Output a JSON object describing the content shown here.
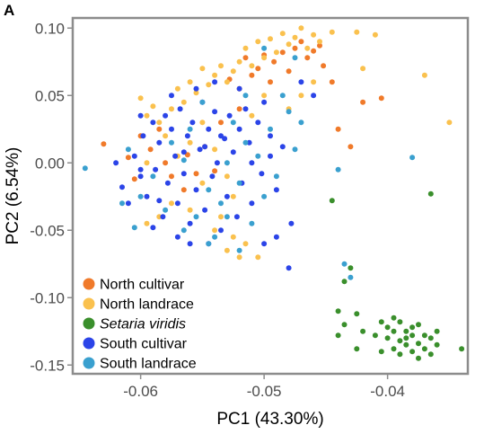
{
  "panel_label": "A",
  "chart_data": {
    "type": "scatter",
    "title": "",
    "xlabel": "PC1 (43.30%)",
    "ylabel": "PC2 (6.54%)",
    "xlim": [
      -0.0655,
      -0.0335
    ],
    "ylim": [
      -0.1565,
      0.1075
    ],
    "xticks": [
      -0.06,
      -0.05,
      -0.04
    ],
    "xtick_labels": [
      "-0.06",
      "-0.05",
      "-0.04"
    ],
    "yticks": [
      0.1,
      0.05,
      0.0,
      -0.05,
      -0.1,
      -0.15
    ],
    "ytick_labels": [
      "0.10",
      "0.05",
      "0.00",
      "-0.05",
      "-0.10",
      "-0.15"
    ],
    "grid": false,
    "legend_position": "bottom-left",
    "series": [
      {
        "name": "North cultivar",
        "italic": false,
        "color": "#f07a2a",
        "points": [
          [
            -0.063,
            0.014
          ],
          [
            -0.061,
            0.004
          ],
          [
            -0.0605,
            -0.012
          ],
          [
            -0.0592,
            0.01
          ],
          [
            -0.058,
            0.0
          ],
          [
            -0.0575,
            -0.01
          ],
          [
            -0.0562,
            0.006
          ],
          [
            -0.0555,
            -0.008
          ],
          [
            -0.0548,
            0.012
          ],
          [
            -0.054,
            -0.006
          ],
          [
            -0.0535,
            0.03
          ],
          [
            -0.0528,
            0.062
          ],
          [
            -0.052,
            0.055
          ],
          [
            -0.0515,
            0.078
          ],
          [
            -0.051,
            0.065
          ],
          [
            -0.0505,
            0.07
          ],
          [
            -0.05,
            0.08
          ],
          [
            -0.0492,
            0.075
          ],
          [
            -0.0485,
            0.082
          ],
          [
            -0.048,
            0.068
          ],
          [
            -0.0475,
            0.085
          ],
          [
            -0.047,
            0.09
          ],
          [
            -0.0465,
            0.078
          ],
          [
            -0.046,
            0.083
          ],
          [
            -0.0455,
            0.087
          ],
          [
            -0.0452,
            0.072
          ],
          [
            -0.0445,
            0.06
          ],
          [
            -0.044,
            0.025
          ],
          [
            -0.043,
            0.012
          ],
          [
            -0.042,
            0.045
          ],
          [
            -0.0405,
            0.048
          ],
          [
            -0.052,
            0.04
          ],
          [
            -0.0585,
            0.025
          ],
          [
            -0.0565,
            -0.02
          ],
          [
            -0.06,
            0.02
          ],
          [
            -0.0495,
            0.06
          ]
        ]
      },
      {
        "name": "North landrace",
        "italic": false,
        "color": "#fac14e",
        "points": [
          [
            -0.06,
            0.048
          ],
          [
            -0.0595,
            0.035
          ],
          [
            -0.059,
            0.042
          ],
          [
            -0.0585,
            0.03
          ],
          [
            -0.058,
            0.02
          ],
          [
            -0.0575,
            0.04
          ],
          [
            -0.057,
            0.055
          ],
          [
            -0.0565,
            0.045
          ],
          [
            -0.056,
            0.06
          ],
          [
            -0.0555,
            0.052
          ],
          [
            -0.055,
            0.07
          ],
          [
            -0.0545,
            0.058
          ],
          [
            -0.054,
            0.065
          ],
          [
            -0.0535,
            0.072
          ],
          [
            -0.053,
            0.06
          ],
          [
            -0.0525,
            0.068
          ],
          [
            -0.052,
            0.075
          ],
          [
            -0.0515,
            0.085
          ],
          [
            -0.051,
            0.072
          ],
          [
            -0.0505,
            0.09
          ],
          [
            -0.05,
            0.078
          ],
          [
            -0.0495,
            0.092
          ],
          [
            -0.049,
            0.082
          ],
          [
            -0.0485,
            0.096
          ],
          [
            -0.048,
            0.088
          ],
          [
            -0.0475,
            0.093
          ],
          [
            -0.047,
            0.1
          ],
          [
            -0.0465,
            0.085
          ],
          [
            -0.046,
            0.095
          ],
          [
            -0.0455,
            0.09
          ],
          [
            -0.0445,
            0.097
          ],
          [
            -0.0425,
            0.097
          ],
          [
            -0.041,
            0.095
          ],
          [
            -0.037,
            0.065
          ],
          [
            -0.035,
            0.03
          ],
          [
            -0.042,
            0.07
          ],
          [
            -0.055,
            0.03
          ],
          [
            -0.056,
            0.015
          ],
          [
            -0.054,
            0.01
          ],
          [
            -0.053,
            -0.01
          ],
          [
            -0.0525,
            -0.025
          ],
          [
            -0.0535,
            -0.04
          ],
          [
            -0.054,
            -0.05
          ],
          [
            -0.053,
            -0.065
          ],
          [
            -0.052,
            -0.07
          ],
          [
            -0.0515,
            -0.06
          ],
          [
            -0.0505,
            -0.07
          ],
          [
            -0.0525,
            -0.055
          ],
          [
            -0.0585,
            -0.04
          ],
          [
            -0.0595,
            -0.045
          ],
          [
            -0.0575,
            -0.03
          ],
          [
            -0.056,
            -0.035
          ],
          [
            -0.0595,
            0.0
          ],
          [
            -0.057,
            0.005
          ],
          [
            -0.051,
            0.035
          ],
          [
            -0.05,
            0.05
          ],
          [
            -0.055,
            -0.015
          ],
          [
            -0.048,
            0.04
          ],
          [
            -0.047,
            0.05
          ],
          [
            -0.046,
            0.06
          ]
        ]
      },
      {
        "name": "Setaria viridis",
        "italic": true,
        "color": "#3a8f2c",
        "points": [
          [
            -0.0445,
            -0.028
          ],
          [
            -0.0365,
            -0.023
          ],
          [
            -0.043,
            -0.078
          ],
          [
            -0.0435,
            -0.088
          ],
          [
            -0.044,
            -0.11
          ],
          [
            -0.0425,
            -0.112
          ],
          [
            -0.0435,
            -0.12
          ],
          [
            -0.042,
            -0.125
          ],
          [
            -0.044,
            -0.128
          ],
          [
            -0.0425,
            -0.138
          ],
          [
            -0.0405,
            -0.118
          ],
          [
            -0.04,
            -0.122
          ],
          [
            -0.0395,
            -0.115
          ],
          [
            -0.039,
            -0.118
          ],
          [
            -0.0385,
            -0.125
          ],
          [
            -0.038,
            -0.122
          ],
          [
            -0.0375,
            -0.12
          ],
          [
            -0.037,
            -0.128
          ],
          [
            -0.0365,
            -0.13
          ],
          [
            -0.04,
            -0.13
          ],
          [
            -0.0395,
            -0.138
          ],
          [
            -0.039,
            -0.142
          ],
          [
            -0.0385,
            -0.135
          ],
          [
            -0.038,
            -0.14
          ],
          [
            -0.0375,
            -0.134
          ],
          [
            -0.037,
            -0.138
          ],
          [
            -0.0365,
            -0.142
          ],
          [
            -0.036,
            -0.135
          ],
          [
            -0.0395,
            -0.125
          ],
          [
            -0.0385,
            -0.13
          ],
          [
            -0.0405,
            -0.14
          ],
          [
            -0.0375,
            -0.145
          ],
          [
            -0.034,
            -0.138
          ],
          [
            -0.039,
            -0.132
          ],
          [
            -0.038,
            -0.128
          ],
          [
            -0.036,
            -0.125
          ],
          [
            -0.041,
            -0.128
          ]
        ]
      },
      {
        "name": "South cultivar",
        "italic": false,
        "color": "#2b44e8",
        "points": [
          [
            -0.0615,
            -0.018
          ],
          [
            -0.061,
            -0.03
          ],
          [
            -0.0605,
            0.005
          ],
          [
            -0.06,
            -0.01
          ],
          [
            -0.0598,
            0.02
          ],
          [
            -0.0595,
            -0.025
          ],
          [
            -0.059,
            0.03
          ],
          [
            -0.0588,
            -0.005
          ],
          [
            -0.0585,
            0.015
          ],
          [
            -0.0582,
            -0.04
          ],
          [
            -0.058,
            0.035
          ],
          [
            -0.0578,
            -0.015
          ],
          [
            -0.0575,
            0.025
          ],
          [
            -0.0572,
            0.005
          ],
          [
            -0.057,
            -0.03
          ],
          [
            -0.0568,
            0.04
          ],
          [
            -0.0565,
            -0.008
          ],
          [
            -0.0562,
            0.02
          ],
          [
            -0.056,
            -0.045
          ],
          [
            -0.0558,
            0.03
          ],
          [
            -0.0555,
            -0.02
          ],
          [
            -0.0552,
            0.01
          ],
          [
            -0.055,
            0.045
          ],
          [
            -0.0548,
            -0.035
          ],
          [
            -0.0545,
            0.025
          ],
          [
            -0.0542,
            -0.01
          ],
          [
            -0.054,
            0.038
          ],
          [
            -0.0538,
            0.0
          ],
          [
            -0.0535,
            -0.05
          ],
          [
            -0.0532,
            0.018
          ],
          [
            -0.053,
            -0.025
          ],
          [
            -0.0528,
            0.035
          ],
          [
            -0.0525,
            0.008
          ],
          [
            -0.0522,
            -0.04
          ],
          [
            -0.052,
            0.025
          ],
          [
            -0.0518,
            -0.015
          ],
          [
            -0.0515,
            0.04
          ],
          [
            -0.0512,
            0.015
          ],
          [
            -0.051,
            -0.03
          ],
          [
            -0.0505,
            0.03
          ],
          [
            -0.0502,
            -0.008
          ],
          [
            -0.05,
            0.045
          ],
          [
            -0.0495,
            0.02
          ],
          [
            -0.049,
            -0.02
          ],
          [
            -0.0485,
            0.012
          ],
          [
            -0.0478,
            -0.045
          ],
          [
            -0.047,
            0.06
          ],
          [
            -0.046,
            0.05
          ],
          [
            -0.049,
            -0.055
          ],
          [
            -0.048,
            -0.078
          ],
          [
            -0.05,
            -0.06
          ],
          [
            -0.057,
            -0.055
          ],
          [
            -0.059,
            -0.048
          ],
          [
            -0.0555,
            0.055
          ],
          [
            -0.0575,
            0.05
          ],
          [
            -0.054,
            0.06
          ],
          [
            -0.052,
            0.055
          ],
          [
            -0.06,
            0.035
          ],
          [
            -0.062,
            0.0
          ],
          [
            -0.0545,
            -0.06
          ],
          [
            -0.06,
            -0.005
          ],
          [
            -0.0585,
            -0.028
          ],
          [
            -0.0565,
            0.008
          ],
          [
            -0.0548,
            0.012
          ],
          [
            -0.0535,
            0.02
          ],
          [
            -0.051,
            0.0
          ],
          [
            -0.0495,
            0.005
          ],
          [
            -0.056,
            -0.06
          ]
        ]
      },
      {
        "name": "South landrace",
        "italic": false,
        "color": "#3aa0cf",
        "points": [
          [
            -0.0645,
            -0.004
          ],
          [
            -0.0615,
            -0.03
          ],
          [
            -0.0605,
            -0.048
          ],
          [
            -0.06,
            -0.025
          ],
          [
            -0.059,
            -0.01
          ],
          [
            -0.058,
            -0.035
          ],
          [
            -0.0575,
            0.015
          ],
          [
            -0.0565,
            -0.05
          ],
          [
            -0.056,
            0.025
          ],
          [
            -0.0555,
            -0.04
          ],
          [
            -0.0545,
            -0.02
          ],
          [
            -0.054,
            -0.055
          ],
          [
            -0.0535,
            -0.03
          ],
          [
            -0.053,
            0.0
          ],
          [
            -0.0525,
            0.03
          ],
          [
            -0.052,
            -0.015
          ],
          [
            -0.0515,
            0.015
          ],
          [
            -0.051,
            -0.045
          ],
          [
            -0.0505,
            0.005
          ],
          [
            -0.05,
            -0.025
          ],
          [
            -0.0495,
            0.025
          ],
          [
            -0.049,
            -0.01
          ],
          [
            -0.0485,
            0.05
          ],
          [
            -0.048,
            0.038
          ],
          [
            -0.0475,
            0.01
          ],
          [
            -0.047,
            0.03
          ],
          [
            -0.05,
            0.085
          ],
          [
            -0.0475,
            0.078
          ],
          [
            -0.044,
            -0.005
          ],
          [
            -0.0435,
            -0.075
          ],
          [
            -0.043,
            -0.085
          ],
          [
            -0.038,
            0.004
          ],
          [
            -0.0545,
            -0.06
          ],
          [
            -0.052,
            -0.065
          ],
          [
            -0.055,
            0.045
          ],
          [
            -0.061,
            0.01
          ],
          [
            -0.0565,
            0.002
          ],
          [
            -0.053,
            -0.04
          ],
          [
            -0.0515,
            0.05
          ]
        ]
      }
    ]
  }
}
